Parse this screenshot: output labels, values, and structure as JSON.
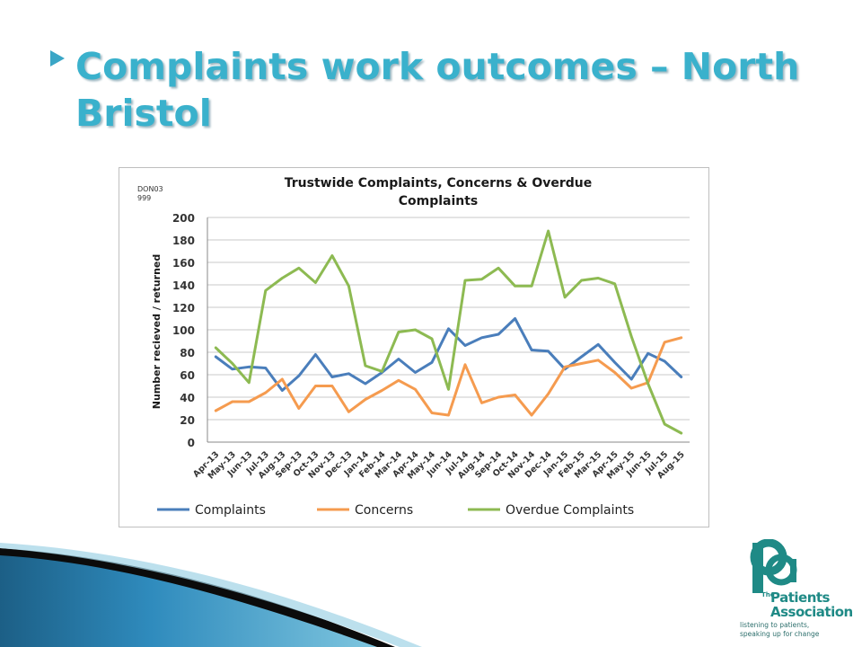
{
  "slide": {
    "title": "Complaints work outcomes – North Bristol"
  },
  "chart_data": {
    "type": "line",
    "title": "Trustwide Complaints, Concerns & Overdue Complaints",
    "corner_label": "DON03 999",
    "ylabel": "Number recieved / returned",
    "xlabel": "",
    "ylim": [
      0,
      200
    ],
    "yticks": [
      0,
      20,
      40,
      60,
      80,
      100,
      120,
      140,
      160,
      180,
      200
    ],
    "grid": true,
    "legend_position": "bottom",
    "categories": [
      "Apr-13",
      "May-13",
      "Jun-13",
      "Jul-13",
      "Aug-13",
      "Sep-13",
      "Oct-13",
      "Nov-13",
      "Dec-13",
      "Jan-14",
      "Feb-14",
      "Mar-14",
      "Apr-14",
      "May-14",
      "Jun-14",
      "Jul-14",
      "Aug-14",
      "Sep-14",
      "Oct-14",
      "Nov-14",
      "Dec-14",
      "Jan-15",
      "Feb-15",
      "Mar-15",
      "Apr-15",
      "May-15",
      "Jun-15",
      "Jul-15",
      "Aug-15"
    ],
    "series": [
      {
        "name": "Complaints",
        "color": "#4a7ebb",
        "values": [
          76,
          65,
          67,
          66,
          46,
          59,
          78,
          58,
          61,
          52,
          62,
          74,
          62,
          71,
          101,
          86,
          93,
          96,
          110,
          82,
          81,
          65,
          76,
          87,
          71,
          56,
          79,
          72,
          58
        ]
      },
      {
        "name": "Concerns",
        "color": "#f59b4f",
        "values": [
          28,
          36,
          36,
          44,
          56,
          30,
          50,
          50,
          27,
          38,
          46,
          55,
          47,
          26,
          24,
          69,
          35,
          40,
          42,
          24,
          43,
          67,
          70,
          73,
          62,
          48,
          53,
          89,
          93
        ]
      },
      {
        "name": "Overdue Complaints",
        "color": "#8dba52",
        "values": [
          84,
          70,
          53,
          135,
          146,
          155,
          142,
          166,
          139,
          68,
          63,
          98,
          100,
          92,
          47,
          144,
          145,
          155,
          139,
          139,
          188,
          129,
          144,
          146,
          141,
          94,
          52,
          16,
          8
        ]
      }
    ]
  },
  "logo": {
    "mark": "pa",
    "the": "The",
    "name_line1": "Patients",
    "name_line2": "Association",
    "tagline_line1": "listening to patients,",
    "tagline_line2": "speaking up for change",
    "color": "#1f8a86"
  },
  "theme": {
    "title_color": "#3ab1cc",
    "accent": "#3aa6c6"
  }
}
